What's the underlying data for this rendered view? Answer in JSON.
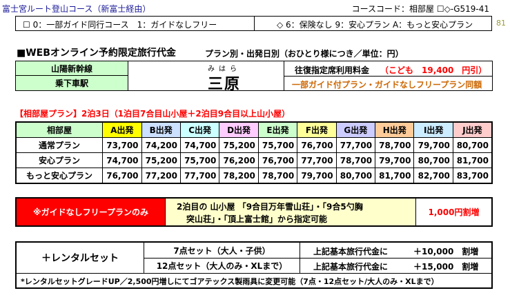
{
  "header": {
    "course_title": "富士宮ルート登山コース（新富士経由）",
    "course_code": "コースコード：相部屋 ☐◇-G519-41",
    "option_left": "☐ 0：一部ガイド同行コース　1：ガイドなしフリー",
    "option_right": "◇ 6：保険なし 9：安心プラン A：もっと安心プラン",
    "side_number": "81"
  },
  "title": {
    "main": "■WEBオンライン予約限定旅行代金",
    "sub": "プラン別・出発日別（おひとり様につき／単位：円）"
  },
  "station": {
    "line_label": "山陽新幹線",
    "station_label": "乗下車駅",
    "reading": "みはら",
    "name": "三原",
    "fare_label": "往復指定席利用料金",
    "fare_child": "（こども　19,400　円引）",
    "guide_note": "一部ガイド付プラン・ガイドなしフリープラン同額"
  },
  "section_title": "【相部屋プラン】2泊3日（1泊目7合目山小屋＋2泊目9合目以上山小屋）",
  "colors": {
    "green": "#ccffcc",
    "yellow_a": "#ffff00",
    "blue_b": "#cce0ff",
    "cyan_c": "#ccffff",
    "pink_d": "#ffccff",
    "green_e": "#ccffcc",
    "yellow_f": "#ffff99",
    "lav_g": "#ccccff",
    "orange_h": "#ffcc99",
    "lightblue_i": "#ccecff",
    "rose_j": "#ffcccc",
    "red_banner": "#ff0000",
    "alert_red": "#ff0000",
    "orange_text": "#cc6600"
  },
  "price_table": {
    "corner": "相部屋",
    "columns": [
      {
        "label": "A出発",
        "color": "#ffff00"
      },
      {
        "label": "B出発",
        "color": "#cce0ff"
      },
      {
        "label": "C出発",
        "color": "#ccffff"
      },
      {
        "label": "D出発",
        "color": "#ffccff"
      },
      {
        "label": "E出発",
        "color": "#ccffcc"
      },
      {
        "label": "F出発",
        "color": "#ffff99"
      },
      {
        "label": "G出発",
        "color": "#ccccff"
      },
      {
        "label": "H出発",
        "color": "#ffcc99"
      },
      {
        "label": "I出発",
        "color": "#ccecff"
      },
      {
        "label": "J出発",
        "color": "#ffcccc"
      }
    ],
    "rows": [
      {
        "plan": "通常プラン",
        "values": [
          "73,700",
          "74,200",
          "74,700",
          "75,200",
          "75,700",
          "76,700",
          "77,700",
          "78,700",
          "79,700",
          "80,700"
        ]
      },
      {
        "plan": "安心プラン",
        "values": [
          "74,700",
          "75,200",
          "75,700",
          "76,200",
          "76,700",
          "77,700",
          "78,700",
          "79,700",
          "80,700",
          "81,700"
        ]
      },
      {
        "plan": "もっと安心プラン",
        "values": [
          "76,700",
          "77,200",
          "77,700",
          "78,200",
          "78,700",
          "79,700",
          "80,700",
          "81,700",
          "82,700",
          "83,700"
        ]
      }
    ]
  },
  "free_plan": {
    "banner": "※ガイドなしフリープランのみ",
    "detail_line1": "2泊目の 山小屋 「9合目万年雪山荘」・「9合5勺胸",
    "detail_line2": "突山荘」・「頂上富士館」から指定可能",
    "surcharge": "1,000円割増"
  },
  "rental": {
    "label": "＋レンタルセット",
    "items": [
      {
        "name": "7点セット（大人・子供）",
        "prefix": "上記基本旅行代金に",
        "price": "＋10,000　割増"
      },
      {
        "name": "12点セット（大人のみ・XLまで）",
        "prefix": "上記基本旅行代金に",
        "price": "＋15,000　割増"
      }
    ],
    "note": "*レンタルセットグレードUP／2,500円増しにてゴアテックス製雨具に変更可能（7点・12点セット/大人のみ・XLまで）"
  }
}
